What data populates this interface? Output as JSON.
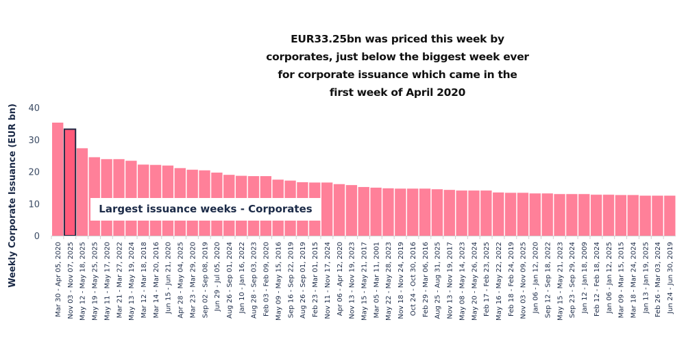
{
  "headline": {
    "lines": [
      "EUR33.25bn was priced this week by",
      "corporates, just below the biggest week ever",
      "for corporate issuance which came in the",
      "first week of April 2020"
    ]
  },
  "annotation": "Largest issuance weeks - Corporates",
  "colors": {
    "bar": "#FF8099",
    "highlight_bar": "#FF5A7A",
    "highlight_border": "#1F2A44",
    "text": "#1B2A47"
  },
  "chart_data": {
    "type": "bar",
    "title": "",
    "xlabel": "",
    "ylabel": "Weekly Corporate Issuance (EUR bn)",
    "ylim": [
      0,
      40
    ],
    "yticks": [
      0,
      10,
      20,
      30,
      40
    ],
    "grid": false,
    "highlight_index": 1,
    "categories": [
      "Mar 30 - Apr 05, 2020",
      "Nov 03 - Nov 07, 2025",
      "May 12 - May 18, 2025",
      "May 19 - May 25, 2025",
      "May 11 - May 17, 2020",
      "Mar 21 - Mar 27, 2022",
      "May 13 - May 19, 2024",
      "Mar 12 - Mar 18, 2018",
      "Mar 14 - Mar 20, 2016",
      "Jun 15 - Jun 21, 2020",
      "Apr 28 - May 04, 2025",
      "Mar 23 - Mar 29, 2020",
      "Sep 02 - Sep 08, 2019",
      "Jun 29 - Jul 05, 2020",
      "Aug 26 - Sep 01, 2024",
      "Jan 10 - Jan 16, 2022",
      "Aug 28 - Sep 03, 2023",
      "Feb 03 - Feb 09, 2020",
      "May 09 - May 15, 2016",
      "Sep 16 - Sep 22, 2019",
      "Aug 26 - Sep 01, 2019",
      "Feb 23 - Mar 01, 2015",
      "Nov 11 - Nov 17, 2024",
      "Apr 06 - Apr 12, 2020",
      "Nov 13 - Nov 19, 2023",
      "May 15 - May 21, 2017",
      "Mar 05 - Mar 11, 2001",
      "May 22 - May 28, 2023",
      "Nov 18 - Nov 24, 2019",
      "Oct 24 - Oct 30, 2016",
      "Feb 29 - Mar 06, 2016",
      "Aug 25 - Aug 31, 2025",
      "Nov 13 - Nov 19, 2017",
      "May 08 - May 14, 2023",
      "May 20 - May 26, 2024",
      "Feb 17 - Feb 23, 2025",
      "May 16 - May 22, 2022",
      "Feb 18 - Feb 24, 2019",
      "Nov 03 - Nov 09, 2025",
      "Jan 06 - Jan 12, 2020",
      "Sep 12 - Sep 18, 2022",
      "May 15 - May 21, 2023",
      "Sep 23 - Sep 29, 2024",
      "Jan 12 - Jan 18, 2009",
      "Feb 12 - Feb 18, 2024",
      "Jan 06 - Jan 12, 2025",
      "Mar 09 - Mar 15, 2015",
      "Mar 18 - Mar 24, 2024",
      "Jan 13 - Jan 19, 2025",
      "Feb 26 - Mar 03, 2024",
      "Jun 24 - Jun 30, 2019"
    ],
    "values": [
      35.3,
      33.25,
      27.3,
      24.5,
      23.9,
      23.9,
      23.4,
      22.2,
      22.1,
      21.9,
      21.1,
      20.6,
      20.4,
      19.7,
      19.0,
      18.7,
      18.6,
      18.6,
      17.5,
      17.2,
      16.7,
      16.6,
      16.6,
      16.1,
      15.8,
      15.2,
      15.0,
      14.8,
      14.7,
      14.7,
      14.7,
      14.5,
      14.3,
      14.1,
      14.1,
      14.1,
      13.5,
      13.4,
      13.4,
      13.2,
      13.2,
      13.0,
      13.0,
      13.0,
      12.8,
      12.8,
      12.7,
      12.7,
      12.5,
      12.5,
      12.5
    ]
  }
}
